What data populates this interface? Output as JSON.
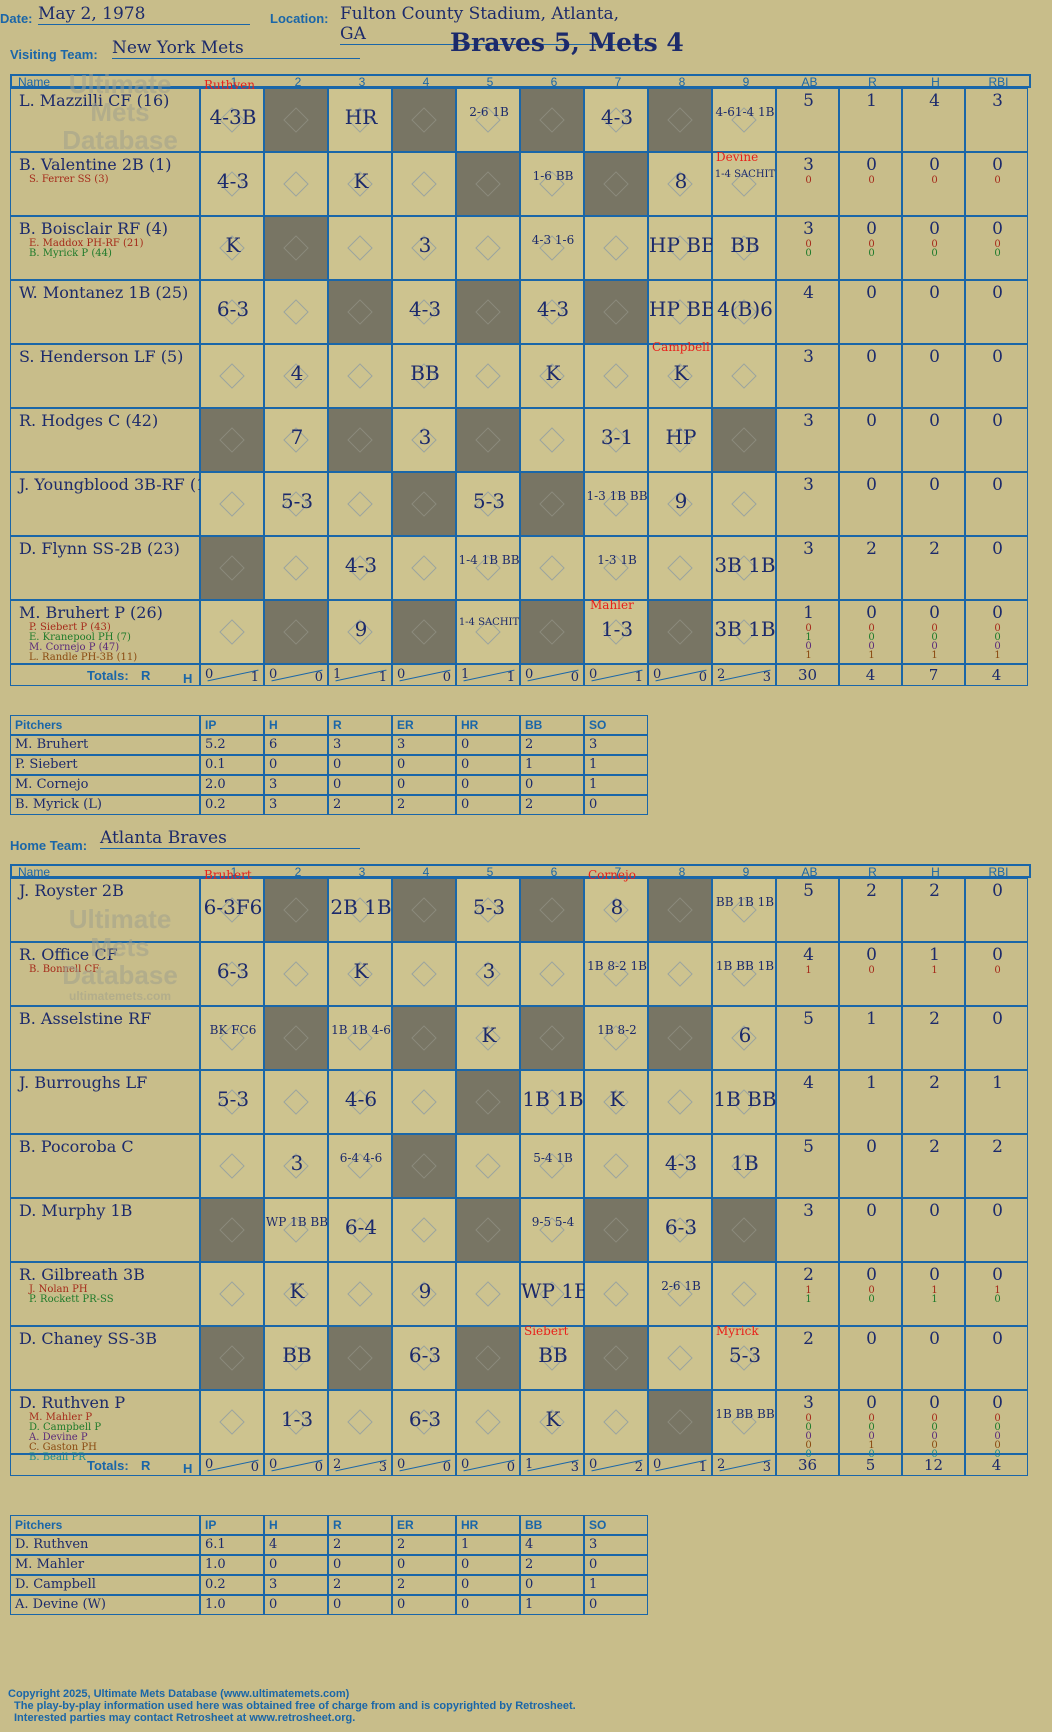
{
  "header": {
    "date_label": "Date:",
    "date": "May 2, 1978",
    "location_label": "Location:",
    "location": "Fulton County Stadium, Atlanta, GA",
    "visiting_label": "Visiting Team:",
    "visiting_team": "New York Mets",
    "result": "Braves 5, Mets 4",
    "home_label": "Home Team:",
    "home_team": "Atlanta Braves"
  },
  "columns": {
    "name": "Name",
    "innings": [
      "1",
      "2",
      "3",
      "4",
      "5",
      "6",
      "7",
      "8",
      "9"
    ],
    "stats": [
      "AB",
      "R",
      "H",
      "RBI"
    ],
    "totals_label": "Totals:",
    "r": "R",
    "h": "H"
  },
  "visitor": {
    "rows": [
      {
        "name": "L. Mazzilli CF (16)",
        "subs": [],
        "cells": [
          "4-3B",
          "",
          "HR",
          "",
          "2-6 1B",
          "",
          "4-3",
          "",
          "4-61-4 1B"
        ],
        "stats": {
          "ab": "5",
          "r": "1",
          "h": "4",
          "rbi": "3"
        },
        "substats": []
      },
      {
        "name": "B. Valentine 2B (1)",
        "subs": [
          {
            "t": "S. Ferrer SS (3)",
            "c": "#a52a1a"
          }
        ],
        "cells": [
          "4-3",
          "",
          "K",
          "",
          "",
          "1-6 BB",
          "",
          "8",
          "1-4 SACHIT"
        ],
        "stats": {
          "ab": "3",
          "r": "0",
          "h": "0",
          "rbi": "0"
        },
        "substats": [
          {
            "ab": "0",
            "r": "0",
            "h": "0",
            "rbi": "0",
            "c": "#a52a1a"
          }
        ]
      },
      {
        "name": "B. Boisclair RF (4)",
        "subs": [
          {
            "t": "E. Maddox PH-RF (21)",
            "c": "#a52a1a"
          },
          {
            "t": "B. Myrick P (44)",
            "c": "#1e7a2a"
          }
        ],
        "cells": [
          "K",
          "",
          "",
          "3",
          "",
          "4-3 1-6",
          "",
          "HP BB",
          "BB"
        ],
        "stats": {
          "ab": "3",
          "r": "0",
          "h": "0",
          "rbi": "0"
        },
        "substats": [
          {
            "ab": "0",
            "r": "0",
            "h": "0",
            "rbi": "0",
            "c": "#a52a1a"
          },
          {
            "ab": "0",
            "r": "0",
            "h": "0",
            "rbi": "0",
            "c": "#1e7a2a"
          }
        ]
      },
      {
        "name": "W. Montanez 1B (25)",
        "subs": [],
        "cells": [
          "6-3",
          "",
          "",
          "4-3",
          "",
          "4-3",
          "",
          "HP BB",
          "4(B)6"
        ],
        "stats": {
          "ab": "4",
          "r": "0",
          "h": "0",
          "rbi": "0"
        },
        "substats": []
      },
      {
        "name": "S. Henderson LF (5)",
        "subs": [],
        "cells": [
          "",
          "4",
          "",
          "BB",
          "",
          "K",
          "",
          "K",
          ""
        ],
        "stats": {
          "ab": "3",
          "r": "0",
          "h": "0",
          "rbi": "0"
        },
        "substats": []
      },
      {
        "name": "R. Hodges C (42)",
        "subs": [],
        "cells": [
          "",
          "7",
          "",
          "3",
          "",
          "",
          "3-1",
          "HP",
          ""
        ],
        "stats": {
          "ab": "3",
          "r": "0",
          "h": "0",
          "rbi": "0"
        },
        "substats": []
      },
      {
        "name": "J. Youngblood 3B-RF (18)",
        "subs": [],
        "cells": [
          "",
          "5-3",
          "",
          "",
          "5-3",
          "",
          "1-3 1B BB",
          "9",
          ""
        ],
        "stats": {
          "ab": "3",
          "r": "0",
          "h": "0",
          "rbi": "0"
        },
        "substats": []
      },
      {
        "name": "D. Flynn SS-2B (23)",
        "subs": [],
        "cells": [
          "",
          "",
          "4-3",
          "",
          "1-4 1B BB",
          "",
          "1-3 1B",
          "",
          "3B 1B"
        ],
        "stats": {
          "ab": "3",
          "r": "2",
          "h": "2",
          "rbi": "0"
        },
        "substats": []
      },
      {
        "name": "M. Bruhert P (26)",
        "subs": [
          {
            "t": "P. Siebert P (43)",
            "c": "#a52a1a"
          },
          {
            "t": "E. Kranepool PH (7)",
            "c": "#1e7a2a"
          },
          {
            "t": "M. Cornejo P (47)",
            "c": "#5a2a7a"
          },
          {
            "t": "L. Randle PH-3B (11)",
            "c": "#8a4a10"
          }
        ],
        "cells": [
          "",
          "",
          "9",
          "",
          "1-4 SACHIT",
          "",
          "1-3",
          "",
          "3B 1B"
        ],
        "stats": {
          "ab": "1",
          "r": "0",
          "h": "0",
          "rbi": "0"
        },
        "substats": [
          {
            "ab": "0",
            "r": "0",
            "h": "0",
            "rbi": "0",
            "c": "#a52a1a"
          },
          {
            "ab": "1",
            "r": "0",
            "h": "0",
            "rbi": "0",
            "c": "#1e7a2a"
          },
          {
            "ab": "0",
            "r": "0",
            "h": "0",
            "rbi": "0",
            "c": "#5a2a7a"
          },
          {
            "ab": "1",
            "r": "1",
            "h": "1",
            "rbi": "1",
            "c": "#8a4a10"
          }
        ]
      }
    ],
    "totals": [
      [
        "0",
        "1"
      ],
      [
        "0",
        "0"
      ],
      [
        "1",
        "1"
      ],
      [
        "0",
        "0"
      ],
      [
        "1",
        "1"
      ],
      [
        "0",
        "0"
      ],
      [
        "0",
        "1"
      ],
      [
        "0",
        "0"
      ],
      [
        "2",
        "3"
      ]
    ],
    "totals_stats": {
      "ab": "30",
      "r": "4",
      "h": "7",
      "rbi": "4"
    },
    "pitchers_head": [
      "Pitchers",
      "IP",
      "H",
      "R",
      "ER",
      "HR",
      "BB",
      "SO"
    ],
    "pitchers": [
      [
        "M. Bruhert",
        "5.2",
        "6",
        "3",
        "3",
        "0",
        "2",
        "3"
      ],
      [
        "P. Siebert",
        "0.1",
        "0",
        "0",
        "0",
        "0",
        "1",
        "1"
      ],
      [
        "M. Cornejo",
        "2.0",
        "3",
        "0",
        "0",
        "0",
        "0",
        "1"
      ],
      [
        "B. Myrick (L)",
        "0.2",
        "3",
        "2",
        "2",
        "0",
        "2",
        "0"
      ]
    ],
    "notes": [
      "Ruthven",
      "Devine",
      "Campbell",
      "Mahler"
    ]
  },
  "home": {
    "rows": [
      {
        "name": "J. Royster 2B",
        "subs": [],
        "cells": [
          "6-3F6",
          "",
          "2B 1B",
          "",
          "5-3",
          "",
          "8",
          "",
          "BB 1B 1B"
        ],
        "stats": {
          "ab": "5",
          "r": "2",
          "h": "2",
          "rbi": "0"
        },
        "substats": []
      },
      {
        "name": "R. Office CF",
        "subs": [
          {
            "t": "B. Bonnell CF",
            "c": "#a52a1a"
          }
        ],
        "cells": [
          "6-3",
          "",
          "K",
          "",
          "3",
          "",
          "1B 8-2 1B",
          "",
          "1B BB 1B"
        ],
        "stats": {
          "ab": "4",
          "r": "0",
          "h": "1",
          "rbi": "0"
        },
        "substats": [
          {
            "ab": "1",
            "r": "0",
            "h": "1",
            "rbi": "0",
            "c": "#a52a1a"
          }
        ]
      },
      {
        "name": "B. Asselstine RF",
        "subs": [],
        "cells": [
          "BK FC6",
          "",
          "1B 1B 4-6",
          "",
          "K",
          "",
          "1B 8-2",
          "",
          "6"
        ],
        "stats": {
          "ab": "5",
          "r": "1",
          "h": "2",
          "rbi": "0"
        },
        "substats": []
      },
      {
        "name": "J. Burroughs LF",
        "subs": [],
        "cells": [
          "5-3",
          "",
          "4-6",
          "",
          "",
          "1B 1B",
          "K",
          "",
          "1B BB"
        ],
        "stats": {
          "ab": "4",
          "r": "1",
          "h": "2",
          "rbi": "1"
        },
        "substats": []
      },
      {
        "name": "B. Pocoroba C",
        "subs": [],
        "cells": [
          "",
          "3",
          "6-4 4-6",
          "",
          "",
          "5-4 1B",
          "",
          "4-3",
          "1B"
        ],
        "stats": {
          "ab": "5",
          "r": "0",
          "h": "2",
          "rbi": "2"
        },
        "substats": []
      },
      {
        "name": "D. Murphy 1B",
        "subs": [],
        "cells": [
          "",
          "WP 1B BB",
          "6-4",
          "",
          "",
          "9-5 5-4",
          "",
          "6-3",
          ""
        ],
        "stats": {
          "ab": "3",
          "r": "0",
          "h": "0",
          "rbi": "0"
        },
        "substats": []
      },
      {
        "name": "R. Gilbreath 3B",
        "subs": [
          {
            "t": "J. Nolan PH",
            "c": "#a52a1a"
          },
          {
            "t": "P. Rockett PR-SS",
            "c": "#1e7a2a"
          }
        ],
        "cells": [
          "",
          "K",
          "",
          "9",
          "",
          "WP 1B",
          "",
          "2-6 1B",
          ""
        ],
        "stats": {
          "ab": "2",
          "r": "0",
          "h": "0",
          "rbi": "0"
        },
        "substats": [
          {
            "ab": "1",
            "r": "0",
            "h": "1",
            "rbi": "1",
            "c": "#a52a1a"
          },
          {
            "ab": "1",
            "r": "0",
            "h": "1",
            "rbi": "0",
            "c": "#1e7a2a"
          }
        ]
      },
      {
        "name": "D. Chaney SS-3B",
        "subs": [],
        "cells": [
          "",
          "BB",
          "",
          "6-3",
          "",
          "BB",
          "",
          "",
          "5-3"
        ],
        "stats": {
          "ab": "2",
          "r": "0",
          "h": "0",
          "rbi": "0"
        },
        "substats": []
      },
      {
        "name": "D. Ruthven P",
        "subs": [
          {
            "t": "M. Mahler P",
            "c": "#a52a1a"
          },
          {
            "t": "D. Campbell P",
            "c": "#1e7a2a"
          },
          {
            "t": "A. Devine P",
            "c": "#5a2a7a"
          },
          {
            "t": "C. Gaston PH",
            "c": "#8a4a10"
          },
          {
            "t": "B. Beall PR",
            "c": "#1a8a8a"
          }
        ],
        "cells": [
          "",
          "1-3",
          "",
          "6-3",
          "",
          "K",
          "",
          "",
          "1B BB BB"
        ],
        "stats": {
          "ab": "3",
          "r": "0",
          "h": "0",
          "rbi": "0"
        },
        "substats": [
          {
            "ab": "0",
            "r": "0",
            "h": "0",
            "rbi": "0",
            "c": "#a52a1a"
          },
          {
            "ab": "0",
            "r": "0",
            "h": "0",
            "rbi": "0",
            "c": "#1e7a2a"
          },
          {
            "ab": "0",
            "r": "0",
            "h": "0",
            "rbi": "0",
            "c": "#5a2a7a"
          },
          {
            "ab": "0",
            "r": "1",
            "h": "0",
            "rbi": "0",
            "c": "#8a4a10"
          },
          {
            "ab": "0",
            "r": "0",
            "h": "0",
            "rbi": "0",
            "c": "#1a8a8a"
          }
        ]
      }
    ],
    "totals": [
      [
        "0",
        "0"
      ],
      [
        "0",
        "0"
      ],
      [
        "2",
        "3"
      ],
      [
        "0",
        "0"
      ],
      [
        "0",
        "0"
      ],
      [
        "1",
        "3"
      ],
      [
        "0",
        "2"
      ],
      [
        "0",
        "1"
      ],
      [
        "2",
        "3"
      ]
    ],
    "totals_stats": {
      "ab": "36",
      "r": "5",
      "h": "12",
      "rbi": "4"
    },
    "pitchers_head": [
      "Pitchers",
      "IP",
      "H",
      "R",
      "ER",
      "HR",
      "BB",
      "SO"
    ],
    "pitchers": [
      [
        "D. Ruthven",
        "6.1",
        "4",
        "2",
        "2",
        "1",
        "4",
        "3"
      ],
      [
        "M. Mahler",
        "1.0",
        "0",
        "0",
        "0",
        "0",
        "2",
        "0"
      ],
      [
        "D. Campbell",
        "0.2",
        "3",
        "2",
        "2",
        "0",
        "0",
        "1"
      ],
      [
        "A. Devine (W)",
        "1.0",
        "0",
        "0",
        "0",
        "0",
        "1",
        "0"
      ]
    ],
    "notes": [
      "Bruhert",
      "Cornejo",
      "Siebert",
      "Myrick"
    ]
  },
  "watermark": [
    "Ultimate",
    "Mets",
    "Database"
  ],
  "watermark_url": "ultimatemets.com",
  "footer": {
    "line1": "Copyright 2025, Ultimate Mets Database (www.ultimatemets.com)",
    "line2": "The play-by-play information used here was obtained free of charge from and is copyrighted by Retrosheet.",
    "line3": "Interested parties may contact Retrosheet at www.retrosheet.org."
  },
  "colors": {
    "ink": "#1c2a6b",
    "grid": "#1a66a8",
    "paper": "#c8bd8a",
    "shade": "#787564",
    "note": "#e8201a"
  }
}
